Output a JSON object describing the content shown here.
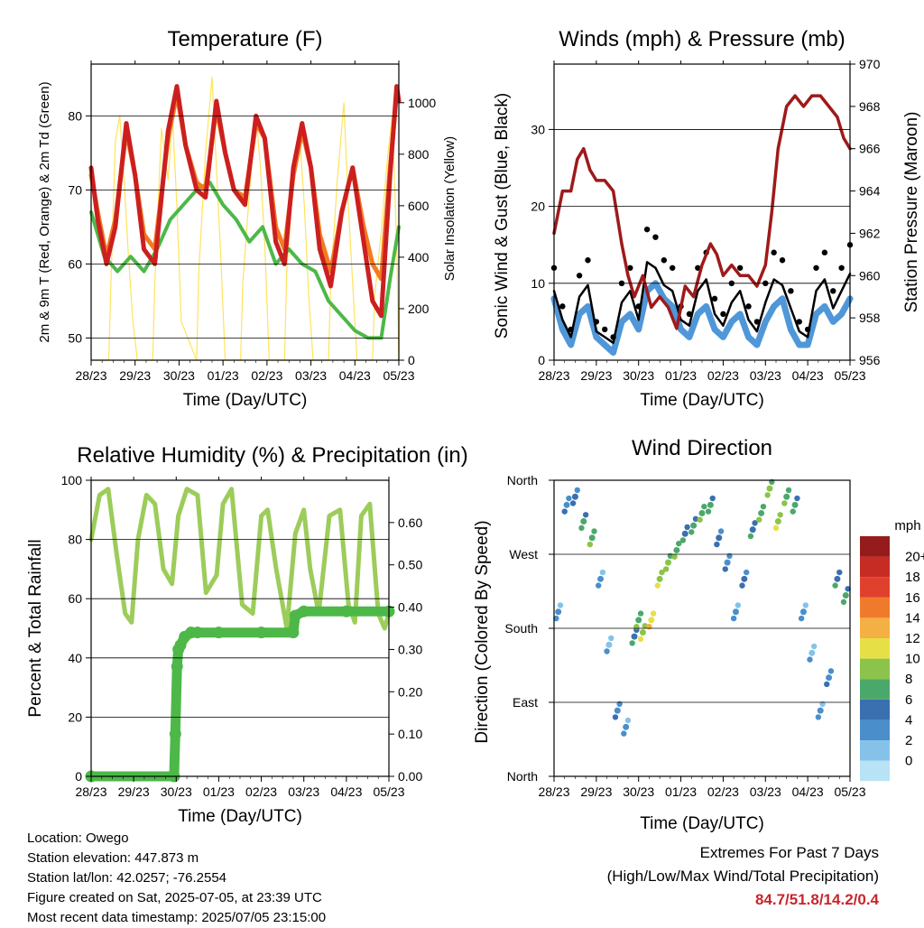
{
  "colors": {
    "temp2m": "#cc1f1f",
    "temp9m": "#f47a20",
    "dewpoint": "#4db848",
    "solar": "#ffe35c",
    "gust": "#000000",
    "wind": "#4f97d8",
    "pressure": "#9e1a1a",
    "rh": "#9ccc5a",
    "precip": "#4db848",
    "extremes": "#c8262c"
  },
  "footer": {
    "location": "Location: Owego",
    "elevation": "Station elevation: 447.873 m",
    "latlon": "Station lat/lon: 42.0257; -76.2554",
    "created": "Figure created on Sat, 2025-07-05, at 23:39 UTC",
    "recent": "Most recent data timestamp: 2025/07/05 23:15:00",
    "extremes_title": "Extremes For Past 7 Days",
    "extremes_sub": "(High/Low/Max Wind/Total Precipitation)",
    "extremes_values": "84.7/51.8/14.2/0.4"
  },
  "chart_data": [
    {
      "type": "line",
      "title": "Temperature (F)",
      "xlabel": "Time (Day/UTC)",
      "ylabel": "2m & 9m T (Red, Orange) & 2m Td (Green)",
      "y2label": "Solar Insolation (Yellow)",
      "xticks": [
        "28/23",
        "29/23",
        "30/23",
        "01/23",
        "02/23",
        "03/23",
        "04/23",
        "05/23"
      ],
      "xlim": [
        0,
        7
      ],
      "ylim": [
        47,
        87
      ],
      "yticks": [
        "50",
        "60",
        "70",
        "80"
      ],
      "y2lim": [
        0,
        1150
      ],
      "y2ticks": [
        "0",
        "200",
        "400",
        "600",
        "800",
        "1000"
      ],
      "grid": "horizontal",
      "series": [
        {
          "key": "t2m",
          "x": [
            0,
            0.15,
            0.35,
            0.55,
            0.8,
            1.0,
            1.2,
            1.45,
            1.75,
            1.95,
            2.15,
            2.4,
            2.6,
            2.85,
            3.05,
            3.25,
            3.5,
            3.75,
            3.95,
            4.2,
            4.4,
            4.6,
            4.8,
            5.0,
            5.2,
            5.45,
            5.7,
            5.95,
            6.2,
            6.4,
            6.6,
            6.8,
            6.95,
            7.0
          ],
          "y": [
            73,
            66,
            60,
            65,
            79,
            72,
            62,
            60,
            78,
            84,
            76,
            70,
            69,
            82,
            75,
            70,
            68,
            80,
            77,
            63,
            60,
            73,
            79,
            73,
            62,
            57,
            67,
            73,
            63,
            55,
            53,
            72,
            84,
            82
          ]
        },
        {
          "key": "t9m",
          "x": [
            0,
            0.15,
            0.35,
            0.55,
            0.8,
            1.0,
            1.2,
            1.45,
            1.75,
            1.95,
            2.15,
            2.4,
            2.6,
            2.85,
            3.05,
            3.25,
            3.5,
            3.75,
            3.95,
            4.2,
            4.4,
            4.6,
            4.8,
            5.0,
            5.2,
            5.45,
            5.7,
            5.95,
            6.2,
            6.4,
            6.6,
            6.8,
            6.95,
            7.0
          ],
          "y": [
            72,
            67,
            61,
            66,
            78,
            72,
            64,
            62,
            77,
            83,
            76,
            71,
            70,
            81,
            75,
            70,
            69,
            79,
            77,
            65,
            62,
            72,
            78,
            73,
            64,
            59,
            67,
            73,
            65,
            60,
            58,
            73,
            83,
            82
          ]
        },
        {
          "key": "td",
          "x": [
            0,
            0.3,
            0.6,
            0.9,
            1.2,
            1.5,
            1.8,
            2.1,
            2.4,
            2.7,
            3.0,
            3.3,
            3.6,
            3.9,
            4.2,
            4.5,
            4.8,
            5.1,
            5.4,
            5.7,
            6.0,
            6.3,
            6.6,
            6.8,
            7.0
          ],
          "y": [
            67,
            61,
            59,
            61,
            59,
            62,
            66,
            68,
            70,
            71,
            68,
            66,
            63,
            65,
            60,
            62,
            60,
            59,
            55,
            53,
            51,
            50,
            50,
            58,
            65
          ]
        },
        {
          "key": "solar",
          "axis": "y2",
          "x": [
            0,
            0.4,
            0.45,
            0.55,
            0.65,
            0.75,
            0.85,
            0.95,
            1.05,
            1.4,
            1.45,
            1.6,
            1.75,
            1.85,
            1.95,
            2.05,
            2.4,
            2.45,
            2.6,
            2.75,
            2.85,
            2.95,
            3.05,
            3.4,
            3.45,
            3.6,
            3.75,
            3.85,
            3.95,
            4.05,
            4.4,
            4.45,
            4.6,
            4.75,
            4.85,
            4.95,
            5.05,
            5.4,
            5.45,
            5.6,
            5.75,
            5.85,
            5.95,
            6.05,
            6.4,
            6.45,
            6.6,
            6.75,
            6.85,
            6.95,
            7.0
          ],
          "y": [
            0,
            0,
            300,
            850,
            950,
            700,
            400,
            150,
            0,
            0,
            300,
            900,
            700,
            950,
            600,
            150,
            0,
            350,
            800,
            1100,
            750,
            400,
            0,
            0,
            300,
            650,
            950,
            750,
            450,
            0,
            0,
            350,
            700,
            850,
            600,
            250,
            0,
            0,
            300,
            700,
            1000,
            600,
            300,
            0,
            0,
            250,
            500,
            800,
            950,
            450,
            0
          ]
        }
      ]
    },
    {
      "type": "line",
      "title": "Winds (mph) & Pressure (mb)",
      "xlabel": "Time (Day/UTC)",
      "ylabel": "Sonic Wind & Gust (Blue, Black)",
      "y2label": "Station Pressure (Maroon)",
      "xticks": [
        "28/23",
        "29/23",
        "30/23",
        "01/23",
        "02/23",
        "03/23",
        "04/23",
        "05/23"
      ],
      "xlim": [
        0,
        7
      ],
      "ylim": [
        0,
        38.5
      ],
      "yticks": [
        "0",
        "10",
        "20",
        "30"
      ],
      "y2lim": [
        956,
        970
      ],
      "y2ticks": [
        "956",
        "958",
        "960",
        "962",
        "964",
        "966",
        "968",
        "970"
      ],
      "grid": "horizontal",
      "series": [
        {
          "key": "wind",
          "x": [
            0,
            0.2,
            0.4,
            0.6,
            0.8,
            1.0,
            1.2,
            1.4,
            1.6,
            1.8,
            2.0,
            2.2,
            2.4,
            2.6,
            2.8,
            3.0,
            3.2,
            3.4,
            3.6,
            3.8,
            4.0,
            4.2,
            4.4,
            4.6,
            4.8,
            5.0,
            5.2,
            5.4,
            5.6,
            5.8,
            6.0,
            6.2,
            6.4,
            6.6,
            6.8,
            7.0
          ],
          "y": [
            8,
            4,
            2,
            6,
            7,
            3,
            2,
            1,
            5,
            6,
            4,
            9,
            10,
            8,
            7,
            4,
            3,
            6,
            7,
            4,
            3,
            5,
            6,
            3,
            2,
            5,
            7,
            8,
            4,
            2,
            2,
            6,
            7,
            5,
            6,
            8
          ]
        },
        {
          "key": "gust",
          "x": [
            0,
            0.2,
            0.4,
            0.6,
            0.8,
            1.0,
            1.2,
            1.4,
            1.6,
            1.8,
            2.0,
            2.2,
            2.4,
            2.6,
            2.8,
            3.0,
            3.2,
            3.4,
            3.6,
            3.8,
            4.0,
            4.2,
            4.4,
            4.6,
            4.8,
            5.0,
            5.2,
            5.4,
            5.6,
            5.8,
            6.0,
            6.2,
            6.4,
            6.6,
            6.8,
            7.0
          ],
          "y": [
            12,
            7,
            4,
            11,
            13,
            5,
            4,
            3,
            10,
            12,
            7,
            17,
            16,
            13,
            12,
            7,
            6,
            12,
            14,
            8,
            6,
            10,
            12,
            7,
            5,
            10,
            14,
            13,
            9,
            5,
            4,
            12,
            14,
            9,
            12,
            15
          ]
        },
        {
          "key": "pressure",
          "axis": "y2",
          "x": [
            0,
            0.2,
            0.4,
            0.55,
            0.7,
            0.85,
            1.0,
            1.2,
            1.4,
            1.6,
            1.75,
            1.9,
            2.1,
            2.3,
            2.5,
            2.7,
            2.9,
            3.1,
            3.3,
            3.5,
            3.7,
            3.85,
            4.0,
            4.2,
            4.4,
            4.6,
            4.8,
            5.0,
            5.15,
            5.3,
            5.5,
            5.7,
            5.9,
            6.1,
            6.3,
            6.5,
            6.7,
            6.85,
            7.0
          ],
          "y": [
            962,
            964,
            964,
            965.5,
            966,
            965,
            964.5,
            964.5,
            964,
            961.5,
            960,
            959,
            960,
            958.5,
            959,
            958.5,
            957.5,
            959.5,
            959,
            960.5,
            961.5,
            961,
            960,
            960.5,
            960,
            960,
            959.5,
            960.5,
            963,
            966,
            968,
            968.5,
            968,
            968.5,
            968.5,
            968,
            967.5,
            966.5,
            966
          ]
        }
      ]
    },
    {
      "type": "line",
      "title": "Relative Humidity (%) & Precipitation (in)",
      "xlabel": "Time (Day/UTC)",
      "ylabel": "Percent & Total Rainfall",
      "xticks": [
        "28/23",
        "29/23",
        "30/23",
        "01/23",
        "02/23",
        "03/23",
        "04/23",
        "05/23"
      ],
      "xlim": [
        0,
        7
      ],
      "ylim": [
        0,
        100
      ],
      "yticks": [
        "0",
        "20",
        "40",
        "60",
        "80",
        "100"
      ],
      "y2lim": [
        0,
        0.7
      ],
      "y2ticks": [
        "0.00",
        "0.10",
        "0.20",
        "0.30",
        "0.40",
        "0.50",
        "0.60"
      ],
      "grid": "horizontal",
      "series": [
        {
          "key": "rh",
          "x": [
            0,
            0.2,
            0.4,
            0.6,
            0.8,
            0.95,
            1.1,
            1.3,
            1.5,
            1.7,
            1.9,
            2.05,
            2.25,
            2.5,
            2.7,
            2.95,
            3.1,
            3.3,
            3.55,
            3.8,
            4.0,
            4.15,
            4.35,
            4.6,
            4.8,
            5.0,
            5.15,
            5.35,
            5.6,
            5.85,
            6.05,
            6.2,
            6.35,
            6.55,
            6.75,
            6.9,
            7.0
          ],
          "y": [
            80,
            95,
            97,
            75,
            55,
            52,
            80,
            95,
            92,
            70,
            65,
            88,
            97,
            95,
            62,
            68,
            92,
            97,
            58,
            55,
            88,
            90,
            70,
            50,
            82,
            90,
            70,
            55,
            88,
            90,
            58,
            52,
            88,
            92,
            55,
            50,
            55
          ]
        },
        {
          "key": "precip",
          "axis": "y2",
          "x": [
            0,
            1.95,
            1.98,
            2.02,
            2.05,
            2.1,
            2.2,
            2.35,
            2.5,
            3.0,
            4.0,
            4.75,
            4.8,
            5.0,
            6.0,
            7.0
          ],
          "y": [
            0,
            0,
            0.1,
            0.26,
            0.3,
            0.31,
            0.33,
            0.34,
            0.34,
            0.34,
            0.34,
            0.34,
            0.38,
            0.39,
            0.39,
            0.39
          ]
        }
      ]
    },
    {
      "type": "scatter",
      "title": "Wind Direction",
      "xlabel": "Time (Day/UTC)",
      "ylabel": "Direction (Colored By Speed)",
      "xticks": [
        "28/23",
        "29/23",
        "30/23",
        "01/23",
        "02/23",
        "03/23",
        "04/23",
        "05/23"
      ],
      "xlim": [
        0,
        7
      ],
      "ylim": [
        0,
        360
      ],
      "yticks": [
        "North",
        "East",
        "South",
        "West",
        "North"
      ],
      "grid": "horizontal",
      "legend_title": "mph",
      "legend": [
        "0",
        "2",
        "4",
        "6",
        "8",
        "10",
        "12",
        "14",
        "16",
        "18",
        "20+"
      ],
      "legend_colors": [
        "#b7e3f5",
        "#85c2ea",
        "#4a8fcc",
        "#3a6fb0",
        "#4ba86b",
        "#8cc34a",
        "#e6e046",
        "#f4b042",
        "#f07a2c",
        "#e0412d",
        "#c72c24",
        "#961c1c"
      ],
      "series": [
        {
          "key": "dir",
          "x": [
            0.1,
            0.3,
            0.5,
            0.7,
            0.9,
            1.1,
            1.3,
            1.5,
            1.7,
            1.9,
            2.0,
            2.1,
            2.3,
            2.5,
            2.7,
            2.9,
            3.1,
            3.3,
            3.5,
            3.7,
            3.9,
            4.1,
            4.3,
            4.5,
            4.7,
            4.9,
            5.1,
            5.3,
            5.5,
            5.7,
            5.9,
            6.1,
            6.3,
            6.5,
            6.7,
            6.9
          ],
          "y": [
            200,
            330,
            340,
            310,
            290,
            240,
            160,
            80,
            60,
            170,
            190,
            175,
            190,
            240,
            260,
            275,
            295,
            305,
            320,
            330,
            290,
            260,
            200,
            240,
            300,
            320,
            350,
            310,
            340,
            330,
            200,
            150,
            80,
            120,
            240,
            220
          ],
          "speed": [
            3,
            4,
            5,
            7,
            8,
            3,
            2,
            4,
            3,
            6,
            8,
            10,
            12,
            10,
            9,
            8,
            6,
            7,
            8,
            7,
            5,
            4,
            3,
            5,
            6,
            8,
            9,
            10,
            8,
            7,
            3,
            2,
            3,
            4,
            6,
            7
          ]
        }
      ]
    }
  ]
}
